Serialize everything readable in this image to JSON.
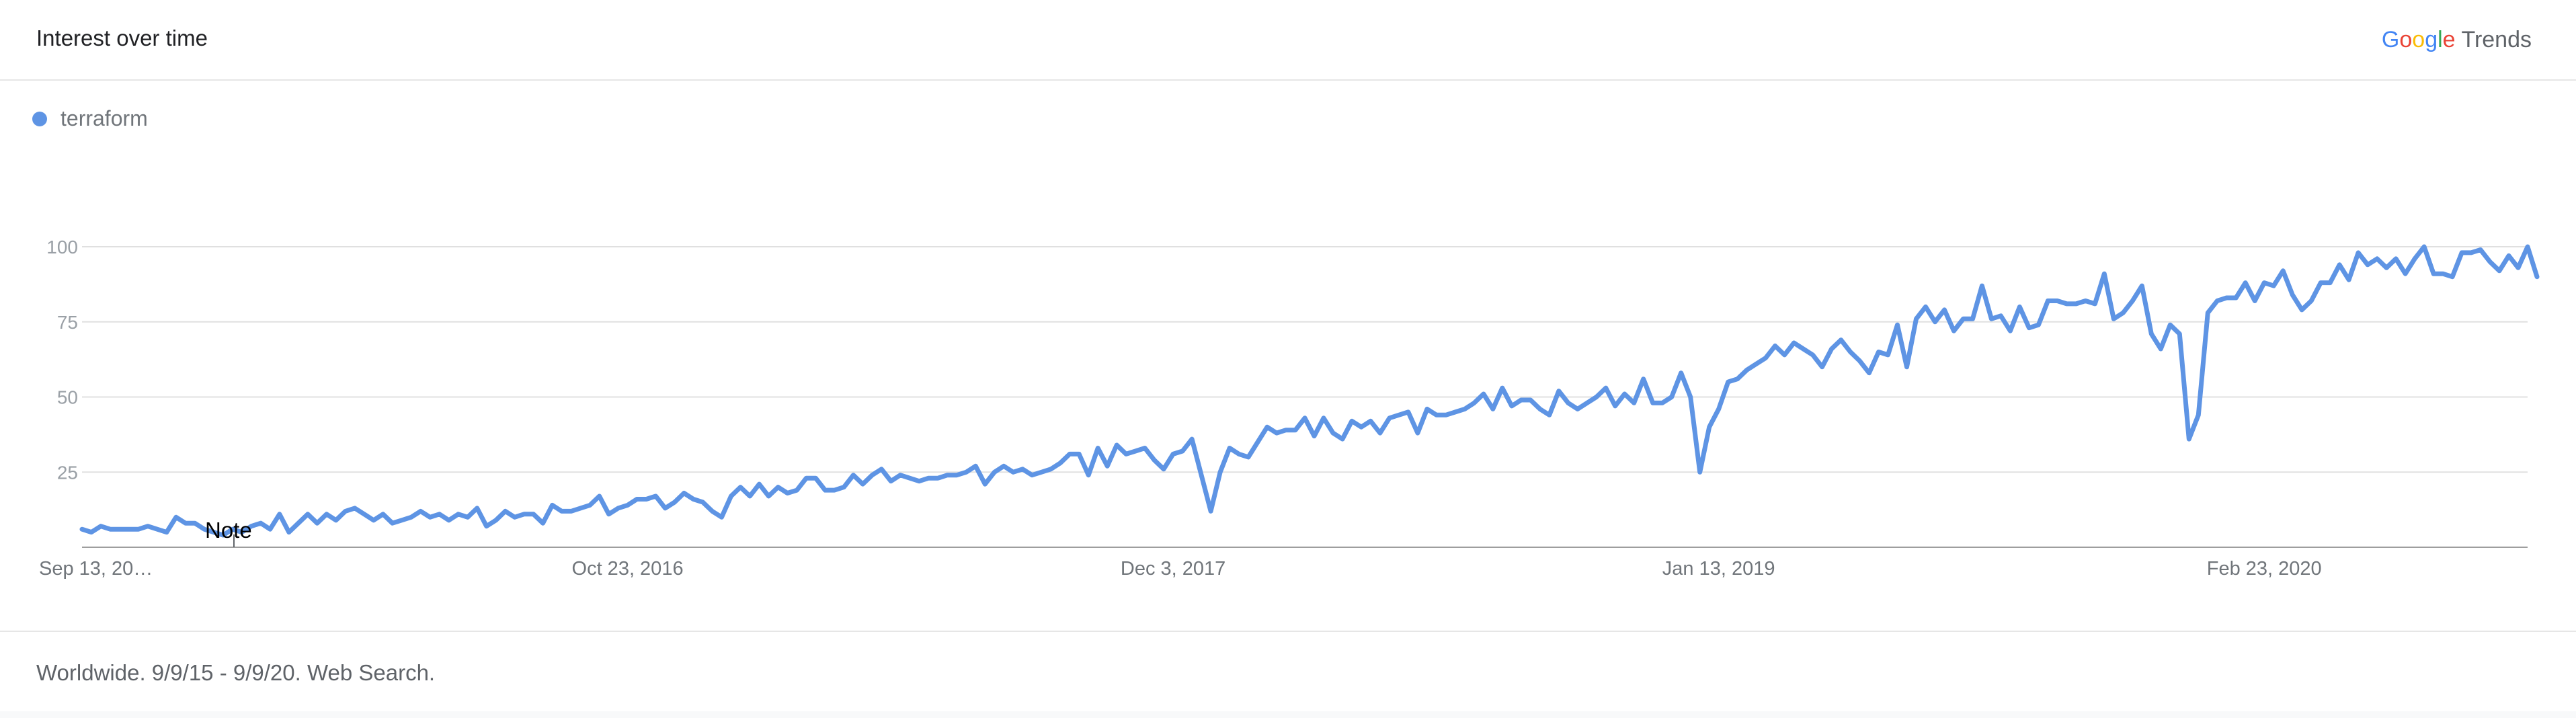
{
  "header": {
    "title": "Interest over time"
  },
  "brand": {
    "g1": "G",
    "o1": "o",
    "o2": "o",
    "g2": "g",
    "l": "l",
    "e": "e",
    "trends": "Trends"
  },
  "legend": {
    "term": "terraform"
  },
  "note": {
    "label": "Note"
  },
  "footer": {
    "text": "Worldwide. 9/9/15 - 9/9/20. Web Search."
  },
  "colors": {
    "series": "#5e94e4",
    "gridline": "#e0e0e0",
    "axis": "#9e9e9e"
  },
  "chart_data": {
    "type": "line",
    "title": "Interest over time",
    "xlabel": "",
    "ylabel": "",
    "ylim": [
      0,
      100
    ],
    "yticks": [
      25,
      50,
      75,
      100
    ],
    "x_tick_labels": [
      "Sep 13, 20…",
      "Oct 23, 2016",
      "Dec 3, 2017",
      "Jan 13, 2019",
      "Feb 23, 2020"
    ],
    "x_tick_dates": [
      "2015-09-13",
      "2016-10-23",
      "2017-12-03",
      "2019-01-13",
      "2020-02-23"
    ],
    "x_start": "2015-09-13",
    "x_end": "2020-09-06",
    "x_interval": "weekly",
    "grid": true,
    "legend_position": "top-left",
    "series": [
      {
        "name": "terraform",
        "values": [
          6,
          5,
          7,
          6,
          6,
          6,
          6,
          7,
          6,
          5,
          10,
          8,
          8,
          6,
          5,
          4,
          6,
          5,
          7,
          8,
          6,
          11,
          5,
          8,
          11,
          8,
          11,
          9,
          12,
          13,
          11,
          9,
          11,
          8,
          9,
          10,
          12,
          10,
          11,
          9,
          11,
          10,
          13,
          7,
          9,
          12,
          10,
          11,
          11,
          8,
          14,
          12,
          12,
          13,
          14,
          17,
          11,
          13,
          14,
          16,
          16,
          17,
          13,
          15,
          18,
          16,
          15,
          12,
          10,
          17,
          20,
          17,
          21,
          17,
          20,
          18,
          19,
          23,
          23,
          19,
          19,
          20,
          24,
          21,
          24,
          26,
          22,
          24,
          23,
          22,
          23,
          23,
          24,
          24,
          25,
          27,
          21,
          25,
          27,
          25,
          26,
          24,
          25,
          26,
          28,
          31,
          31,
          24,
          33,
          27,
          34,
          31,
          32,
          33,
          29,
          26,
          31,
          32,
          36,
          24,
          12,
          25,
          33,
          31,
          30,
          35,
          40,
          38,
          39,
          39,
          43,
          37,
          43,
          38,
          36,
          42,
          40,
          42,
          38,
          43,
          44,
          45,
          38,
          46,
          44,
          44,
          45,
          46,
          48,
          51,
          46,
          53,
          47,
          49,
          49,
          46,
          44,
          52,
          48,
          46,
          48,
          50,
          53,
          47,
          51,
          48,
          56,
          48,
          48,
          50,
          58,
          50,
          25,
          40,
          46,
          55,
          56,
          59,
          61,
          63,
          67,
          64,
          68,
          66,
          64,
          60,
          66,
          69,
          65,
          62,
          58,
          65,
          64,
          74,
          60,
          76,
          80,
          75,
          79,
          72,
          76,
          76,
          87,
          76,
          77,
          72,
          80,
          73,
          74,
          82,
          82,
          81,
          81,
          82,
          81,
          91,
          76,
          78,
          82,
          87,
          71,
          66,
          74,
          71,
          36,
          44,
          78,
          82,
          83,
          83,
          88,
          82,
          88,
          87,
          92,
          84,
          79,
          82,
          88,
          88,
          94,
          89,
          98,
          94,
          96,
          93,
          96,
          91,
          96,
          100,
          91,
          91,
          90,
          98,
          98,
          99,
          95,
          92,
          97,
          93,
          100,
          90
        ]
      }
    ]
  }
}
